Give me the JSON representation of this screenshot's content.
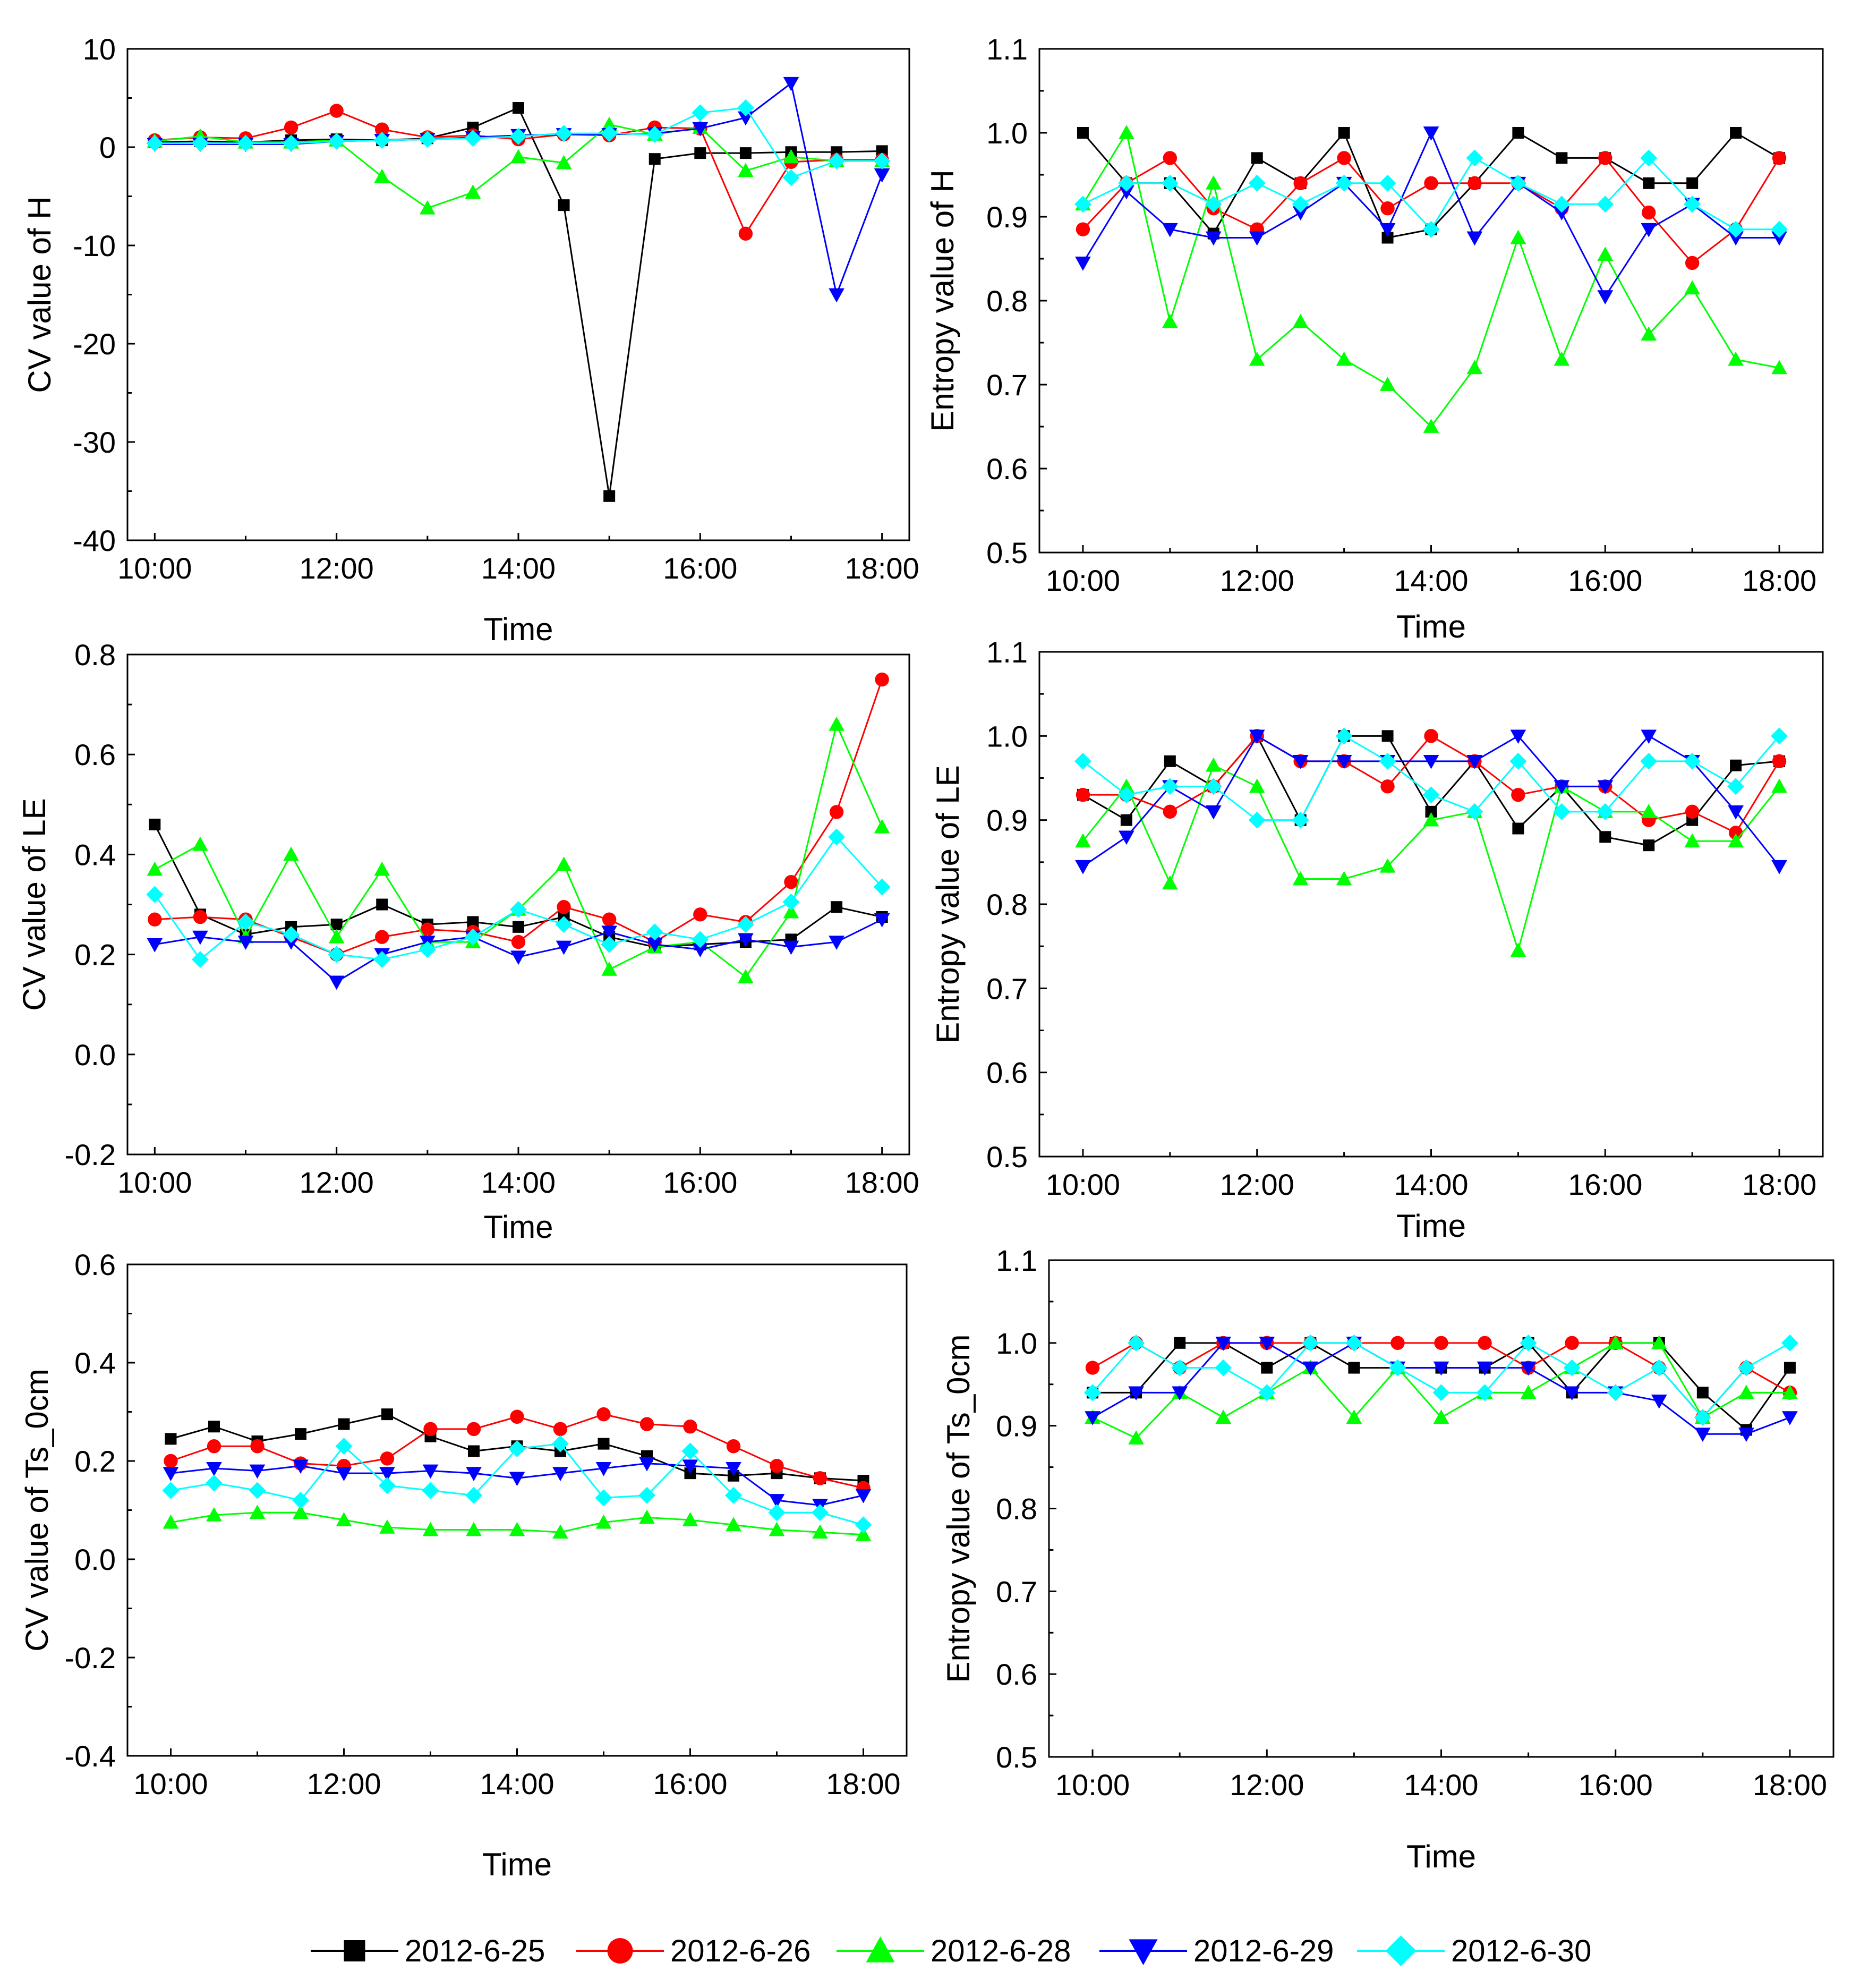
{
  "legend": [
    {
      "name": "2012-6-25",
      "color": "#000000",
      "marker": "square"
    },
    {
      "name": "2012-6-26",
      "color": "#ff0000",
      "marker": "circle"
    },
    {
      "name": "2012-6-28",
      "color": "#00ff00",
      "marker": "triangle-up"
    },
    {
      "name": "2012-6-29",
      "color": "#0000ff",
      "marker": "triangle-down"
    },
    {
      "name": "2012-6-30",
      "color": "#00ffff",
      "marker": "diamond"
    }
  ],
  "chart_data": [
    {
      "id": "cv-h",
      "type": "line",
      "xlabel": "Time",
      "ylabel": "CV value of H",
      "xlim": [
        9.7,
        18.3
      ],
      "ylim": [
        -40,
        10
      ],
      "xticks": [
        10,
        12,
        14,
        16,
        18
      ],
      "xtick_labels": [
        "10:00",
        "12:00",
        "14:00",
        "16:00",
        "18:00"
      ],
      "yticks": [
        -40,
        -30,
        -20,
        -10,
        0,
        10
      ],
      "ytick_labels": [
        "-40",
        "-30",
        "-20",
        "-10",
        "0",
        "10"
      ],
      "x": [
        10,
        10.5,
        11,
        11.5,
        12,
        12.5,
        13,
        13.5,
        14,
        14.5,
        15,
        15.5,
        16,
        16.5,
        17,
        17.5,
        18
      ],
      "series": [
        {
          "name": "2012-6-25",
          "values": [
            0.5,
            0.6,
            0.5,
            0.7,
            0.8,
            0.7,
            0.9,
            2.0,
            4.0,
            -5.9,
            -35.5,
            -1.2,
            -0.6,
            -0.6,
            -0.5,
            -0.5,
            -0.4
          ]
        },
        {
          "name": "2012-6-26",
          "values": [
            0.7,
            1.0,
            0.9,
            2.0,
            3.7,
            1.8,
            1.0,
            1.2,
            0.8,
            1.3,
            1.2,
            2.0,
            1.9,
            -8.8,
            -1.5,
            -1.3,
            -1.3
          ]
        },
        {
          "name": "2012-6-28",
          "values": [
            0.6,
            1.1,
            0.5,
            0.5,
            0.7,
            -3.0,
            -6.2,
            -4.6,
            -1.0,
            -1.6,
            2.3,
            1.3,
            2.0,
            -2.4,
            -1.0,
            -1.4,
            -1.4
          ]
        },
        {
          "name": "2012-6-29",
          "values": [
            0.3,
            0.3,
            0.3,
            0.3,
            0.6,
            0.7,
            0.8,
            1.0,
            1.2,
            1.3,
            1.3,
            1.4,
            1.9,
            3.0,
            6.5,
            -15.0,
            -2.8
          ]
        },
        {
          "name": "2012-6-30",
          "values": [
            0.4,
            0.4,
            0.4,
            0.4,
            0.6,
            0.7,
            0.8,
            0.9,
            1.1,
            1.4,
            1.4,
            1.3,
            3.5,
            4.0,
            -3.1,
            -1.4,
            -1.4
          ]
        }
      ]
    },
    {
      "id": "entropy-h",
      "type": "line",
      "xlabel": "Time",
      "ylabel": "Entropy value of H",
      "xlim": [
        9.5,
        18.5
      ],
      "ylim": [
        0.5,
        1.1
      ],
      "xticks": [
        10,
        12,
        14,
        16,
        18
      ],
      "xtick_labels": [
        "10:00",
        "12:00",
        "14:00",
        "16:00",
        "18:00"
      ],
      "yticks": [
        0.5,
        0.6,
        0.7,
        0.8,
        0.9,
        1.0,
        1.1
      ],
      "ytick_labels": [
        "0.5",
        "0.6",
        "0.7",
        "0.8",
        "0.9",
        "1.0",
        "1.1"
      ],
      "x": [
        10,
        10.5,
        11,
        11.5,
        12,
        12.5,
        13,
        13.5,
        14,
        14.5,
        15,
        15.5,
        16,
        16.5,
        17,
        17.5,
        18
      ],
      "series": [
        {
          "name": "2012-6-25",
          "values": [
            1.0,
            0.94,
            0.94,
            0.88,
            0.97,
            0.94,
            1.0,
            0.875,
            0.885,
            0.94,
            1.0,
            0.97,
            0.97,
            0.94,
            0.94,
            1.0,
            0.97
          ]
        },
        {
          "name": "2012-6-26",
          "values": [
            0.885,
            0.94,
            0.97,
            0.91,
            0.885,
            0.94,
            0.97,
            0.91,
            0.94,
            0.94,
            0.94,
            0.91,
            0.97,
            0.905,
            0.845,
            0.885,
            0.97
          ]
        },
        {
          "name": "2012-6-28",
          "values": [
            0.915,
            1.0,
            0.775,
            0.94,
            0.73,
            0.775,
            0.73,
            0.7,
            0.65,
            0.72,
            0.875,
            0.73,
            0.855,
            0.76,
            0.815,
            0.73,
            0.72
          ]
        },
        {
          "name": "2012-6-29",
          "values": [
            0.845,
            0.93,
            0.885,
            0.875,
            0.875,
            0.905,
            0.94,
            0.885,
            1.0,
            0.875,
            0.94,
            0.905,
            0.805,
            0.885,
            0.915,
            0.875,
            0.875
          ]
        },
        {
          "name": "2012-6-30",
          "values": [
            0.915,
            0.94,
            0.94,
            0.915,
            0.94,
            0.915,
            0.94,
            0.94,
            0.885,
            0.97,
            0.94,
            0.915,
            0.915,
            0.97,
            0.915,
            0.885,
            0.885
          ]
        }
      ]
    },
    {
      "id": "cv-le",
      "type": "line",
      "xlabel": "Time",
      "ylabel": "CV value of LE",
      "xlim": [
        9.7,
        18.3
      ],
      "ylim": [
        -0.2,
        0.8
      ],
      "xticks": [
        10,
        12,
        14,
        16,
        18
      ],
      "xtick_labels": [
        "10:00",
        "12:00",
        "14:00",
        "16:00",
        "18:00"
      ],
      "yticks": [
        -0.2,
        0.0,
        0.2,
        0.4,
        0.6,
        0.8
      ],
      "ytick_labels": [
        "-0.2",
        "0.0",
        "0.2",
        "0.4",
        "0.6",
        "0.8"
      ],
      "x": [
        10,
        10.5,
        11,
        11.5,
        12,
        12.5,
        13,
        13.5,
        14,
        14.5,
        15,
        15.5,
        16,
        16.5,
        17,
        17.5,
        18
      ],
      "series": [
        {
          "name": "2012-6-25",
          "values": [
            0.46,
            0.28,
            0.24,
            0.255,
            0.26,
            0.3,
            0.26,
            0.265,
            0.255,
            0.275,
            0.235,
            0.215,
            0.22,
            0.225,
            0.23,
            0.295,
            0.275
          ]
        },
        {
          "name": "2012-6-26",
          "values": [
            0.27,
            0.275,
            0.27,
            0.235,
            0.2,
            0.235,
            0.25,
            0.245,
            0.225,
            0.295,
            0.27,
            0.225,
            0.28,
            0.265,
            0.345,
            0.485,
            0.75
          ]
        },
        {
          "name": "2012-6-28",
          "values": [
            0.37,
            0.42,
            0.235,
            0.4,
            0.235,
            0.37,
            0.225,
            0.225,
            0.29,
            0.38,
            0.17,
            0.215,
            0.225,
            0.155,
            0.285,
            0.66,
            0.455
          ]
        },
        {
          "name": "2012-6-29",
          "values": [
            0.22,
            0.235,
            0.225,
            0.225,
            0.145,
            0.2,
            0.225,
            0.235,
            0.195,
            0.215,
            0.245,
            0.22,
            0.21,
            0.23,
            0.215,
            0.225,
            0.27
          ]
        },
        {
          "name": "2012-6-30",
          "values": [
            0.32,
            0.19,
            0.265,
            0.24,
            0.2,
            0.19,
            0.21,
            0.235,
            0.29,
            0.26,
            0.22,
            0.245,
            0.23,
            0.26,
            0.305,
            0.435,
            0.335
          ]
        }
      ]
    },
    {
      "id": "entropy-le",
      "type": "line",
      "xlabel": "Time",
      "ylabel": "Entropy value of LE",
      "xlim": [
        9.5,
        18.5
      ],
      "ylim": [
        0.5,
        1.1
      ],
      "xticks": [
        10,
        12,
        14,
        16,
        18
      ],
      "xtick_labels": [
        "10:00",
        "12:00",
        "14:00",
        "16:00",
        "18:00"
      ],
      "yticks": [
        0.5,
        0.6,
        0.7,
        0.8,
        0.9,
        1.0,
        1.1
      ],
      "ytick_labels": [
        "0.5",
        "0.6",
        "0.7",
        "0.8",
        "0.9",
        "1.0",
        "1.1"
      ],
      "x": [
        10,
        10.5,
        11,
        11.5,
        12,
        12.5,
        13,
        13.5,
        14,
        14.5,
        15,
        15.5,
        16,
        16.5,
        17,
        17.5,
        18
      ],
      "series": [
        {
          "name": "2012-6-25",
          "values": [
            0.93,
            0.9,
            0.97,
            0.94,
            1.0,
            0.9,
            1.0,
            1.0,
            0.91,
            0.97,
            0.89,
            0.94,
            0.88,
            0.87,
            0.9,
            0.965,
            0.97
          ]
        },
        {
          "name": "2012-6-26",
          "values": [
            0.93,
            0.93,
            0.91,
            0.94,
            1.0,
            0.97,
            0.97,
            0.94,
            1.0,
            0.97,
            0.93,
            0.94,
            0.94,
            0.9,
            0.91,
            0.885,
            0.97
          ]
        },
        {
          "name": "2012-6-28",
          "values": [
            0.875,
            0.94,
            0.825,
            0.965,
            0.94,
            0.83,
            0.83,
            0.845,
            0.9,
            0.91,
            0.745,
            0.94,
            0.91,
            0.91,
            0.875,
            0.875,
            0.94
          ]
        },
        {
          "name": "2012-6-29",
          "values": [
            0.845,
            0.88,
            0.94,
            0.91,
            1.0,
            0.97,
            0.97,
            0.97,
            0.97,
            0.97,
            1.0,
            0.94,
            0.94,
            1.0,
            0.97,
            0.91,
            0.845
          ]
        },
        {
          "name": "2012-6-30",
          "values": [
            0.97,
            0.93,
            0.94,
            0.94,
            0.9,
            0.9,
            1.0,
            0.97,
            0.93,
            0.91,
            0.97,
            0.91,
            0.91,
            0.97,
            0.97,
            0.94,
            1.0
          ]
        }
      ]
    },
    {
      "id": "cv-ts",
      "type": "line",
      "xlabel": "Time",
      "ylabel": "CV value of Ts_0cm",
      "xlim": [
        9.5,
        18.5
      ],
      "ylim": [
        -0.4,
        0.6
      ],
      "xticks": [
        10,
        12,
        14,
        16,
        18
      ],
      "xtick_labels": [
        "10:00",
        "12:00",
        "14:00",
        "16:00",
        "18:00"
      ],
      "yticks": [
        -0.4,
        -0.2,
        0.0,
        0.2,
        0.4,
        0.6
      ],
      "ytick_labels": [
        "-0.4",
        "-0.2",
        "0.0",
        "0.2",
        "0.4",
        "0.6"
      ],
      "x": [
        10,
        10.5,
        11,
        11.5,
        12,
        12.5,
        13,
        13.5,
        14,
        14.5,
        15,
        15.5,
        16,
        16.5,
        17,
        17.5,
        18
      ],
      "series": [
        {
          "name": "2012-6-25",
          "values": [
            0.245,
            0.27,
            0.24,
            0.255,
            0.275,
            0.295,
            0.25,
            0.22,
            0.23,
            0.22,
            0.235,
            0.21,
            0.175,
            0.17,
            0.175,
            0.165,
            0.16
          ]
        },
        {
          "name": "2012-6-26",
          "values": [
            0.2,
            0.23,
            0.23,
            0.195,
            0.19,
            0.205,
            0.265,
            0.265,
            0.29,
            0.265,
            0.295,
            0.275,
            0.27,
            0.23,
            0.19,
            0.165,
            0.145
          ]
        },
        {
          "name": "2012-6-28",
          "values": [
            0.075,
            0.09,
            0.095,
            0.095,
            0.08,
            0.065,
            0.06,
            0.06,
            0.06,
            0.055,
            0.075,
            0.085,
            0.08,
            0.07,
            0.06,
            0.055,
            0.05
          ]
        },
        {
          "name": "2012-6-29",
          "values": [
            0.175,
            0.185,
            0.18,
            0.19,
            0.175,
            0.175,
            0.18,
            0.175,
            0.165,
            0.175,
            0.185,
            0.195,
            0.19,
            0.185,
            0.12,
            0.11,
            0.13
          ]
        },
        {
          "name": "2012-6-30",
          "values": [
            0.14,
            0.155,
            0.14,
            0.12,
            0.23,
            0.15,
            0.14,
            0.13,
            0.225,
            0.235,
            0.125,
            0.13,
            0.22,
            0.13,
            0.095,
            0.095,
            0.07
          ]
        }
      ]
    },
    {
      "id": "entropy-ts",
      "type": "line",
      "xlabel": "Time",
      "ylabel": "Entropy value of Ts_0cm",
      "xlim": [
        9.5,
        18.5
      ],
      "ylim": [
        0.5,
        1.1
      ],
      "xticks": [
        10,
        12,
        14,
        16,
        18
      ],
      "xtick_labels": [
        "10:00",
        "12:00",
        "14:00",
        "16:00",
        "18:00"
      ],
      "yticks": [
        0.5,
        0.6,
        0.7,
        0.8,
        0.9,
        1.0,
        1.1
      ],
      "ytick_labels": [
        "0.5",
        "0.6",
        "0.7",
        "0.8",
        "0.9",
        "1.0",
        "1.1"
      ],
      "x": [
        10,
        10.5,
        11,
        11.5,
        12,
        12.5,
        13,
        13.5,
        14,
        14.5,
        15,
        15.5,
        16,
        16.5,
        17,
        17.5,
        18
      ],
      "series": [
        {
          "name": "2012-6-25",
          "values": [
            0.94,
            0.94,
            1.0,
            1.0,
            0.97,
            1.0,
            0.97,
            0.97,
            0.97,
            0.97,
            1.0,
            0.94,
            1.0,
            1.0,
            0.94,
            0.895,
            0.97
          ]
        },
        {
          "name": "2012-6-26",
          "values": [
            0.97,
            1.0,
            0.97,
            1.0,
            1.0,
            1.0,
            1.0,
            1.0,
            1.0,
            1.0,
            0.97,
            1.0,
            1.0,
            0.97,
            0.91,
            0.97,
            0.94
          ]
        },
        {
          "name": "2012-6-28",
          "values": [
            0.91,
            0.885,
            0.94,
            0.91,
            0.94,
            0.97,
            0.91,
            0.97,
            0.91,
            0.94,
            0.94,
            0.97,
            1.0,
            1.0,
            0.91,
            0.94,
            0.94
          ]
        },
        {
          "name": "2012-6-29",
          "values": [
            0.91,
            0.94,
            0.94,
            1.0,
            1.0,
            0.97,
            1.0,
            0.97,
            0.97,
            0.97,
            0.97,
            0.94,
            0.94,
            0.93,
            0.89,
            0.89,
            0.91
          ]
        },
        {
          "name": "2012-6-30",
          "values": [
            0.94,
            1.0,
            0.97,
            0.97,
            0.94,
            1.0,
            1.0,
            0.97,
            0.94,
            0.94,
            1.0,
            0.97,
            0.94,
            0.97,
            0.91,
            0.97,
            1.0
          ]
        }
      ]
    }
  ]
}
